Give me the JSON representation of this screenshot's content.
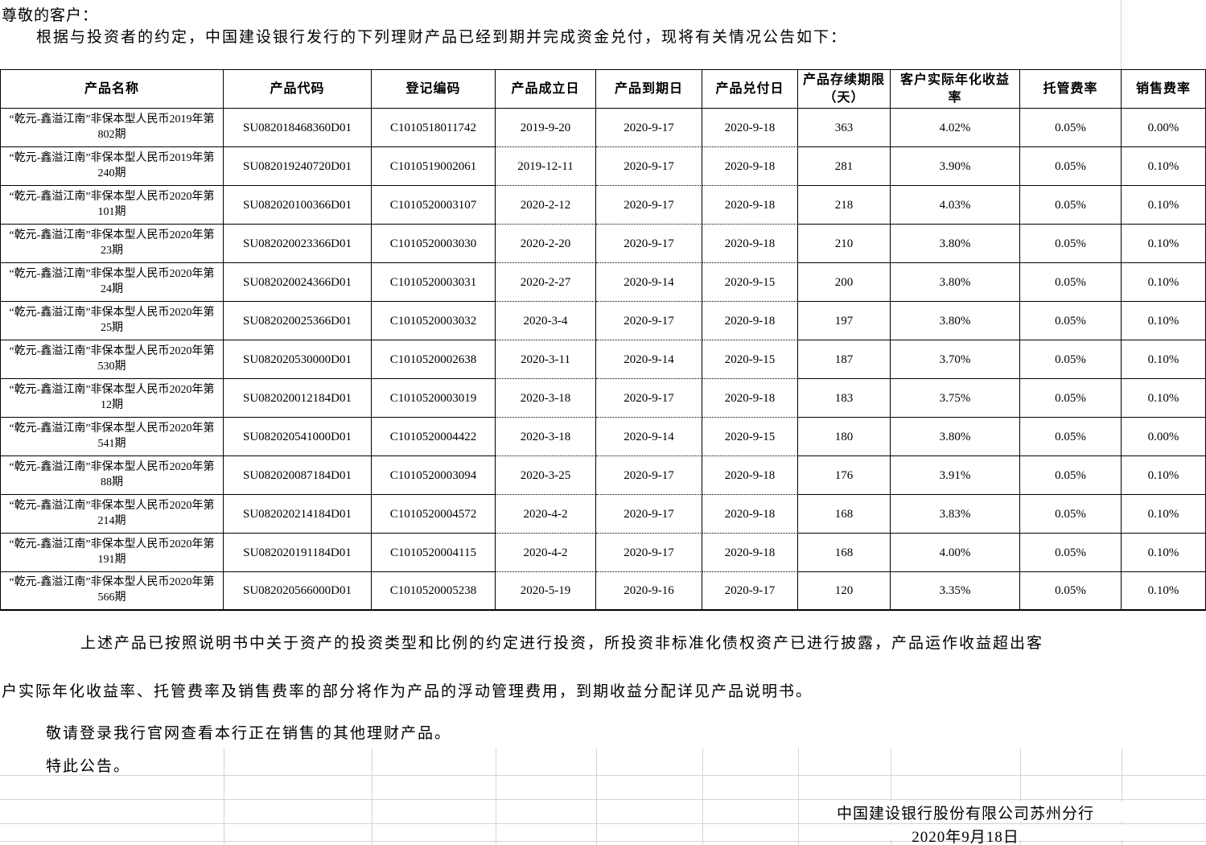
{
  "intro": {
    "salutation": "尊敬的客户：",
    "body": "根据与投资者的约定，中国建设银行发行的下列理财产品已经到期并完成资金兑付，现将有关情况公告如下："
  },
  "table": {
    "headers": [
      "产品名称",
      "产品代码",
      "登记编码",
      "产品成立日",
      "产品到期日",
      "产品兑付日",
      "产品存续期限（天）",
      "客户实际年化收益率",
      "托管费率",
      "销售费率"
    ],
    "rows": [
      [
        "“乾元-鑫溢江南”非保本型人民币2019年第802期",
        "SU082018468360D01",
        "C1010518011742",
        "2019-9-20",
        "2020-9-17",
        "2020-9-18",
        "363",
        "4.02%",
        "0.05%",
        "0.00%"
      ],
      [
        "“乾元-鑫溢江南”非保本型人民币2019年第240期",
        "SU082019240720D01",
        "C1010519002061",
        "2019-12-11",
        "2020-9-17",
        "2020-9-18",
        "281",
        "3.90%",
        "0.05%",
        "0.10%"
      ],
      [
        "“乾元-鑫溢江南”非保本型人民币2020年第101期",
        "SU082020100366D01",
        "C1010520003107",
        "2020-2-12",
        "2020-9-17",
        "2020-9-18",
        "218",
        "4.03%",
        "0.05%",
        "0.10%"
      ],
      [
        "“乾元-鑫溢江南”非保本型人民币2020年第23期",
        "SU082020023366D01",
        "C1010520003030",
        "2020-2-20",
        "2020-9-17",
        "2020-9-18",
        "210",
        "3.80%",
        "0.05%",
        "0.10%"
      ],
      [
        "“乾元-鑫溢江南”非保本型人民币2020年第24期",
        "SU082020024366D01",
        "C1010520003031",
        "2020-2-27",
        "2020-9-14",
        "2020-9-15",
        "200",
        "3.80%",
        "0.05%",
        "0.10%"
      ],
      [
        "“乾元-鑫溢江南”非保本型人民币2020年第25期",
        "SU082020025366D01",
        "C1010520003032",
        "2020-3-4",
        "2020-9-17",
        "2020-9-18",
        "197",
        "3.80%",
        "0.05%",
        "0.10%"
      ],
      [
        "“乾元-鑫溢江南”非保本型人民币2020年第530期",
        "SU082020530000D01",
        "C1010520002638",
        "2020-3-11",
        "2020-9-14",
        "2020-9-15",
        "187",
        "3.70%",
        "0.05%",
        "0.10%"
      ],
      [
        "“乾元-鑫溢江南”非保本型人民币2020年第12期",
        "SU082020012184D01",
        "C1010520003019",
        "2020-3-18",
        "2020-9-17",
        "2020-9-18",
        "183",
        "3.75%",
        "0.05%",
        "0.10%"
      ],
      [
        "“乾元-鑫溢江南”非保本型人民币2020年第541期",
        "SU082020541000D01",
        "C1010520004422",
        "2020-3-18",
        "2020-9-14",
        "2020-9-15",
        "180",
        "3.80%",
        "0.05%",
        "0.00%"
      ],
      [
        "“乾元-鑫溢江南”非保本型人民币2020年第88期",
        "SU082020087184D01",
        "C1010520003094",
        "2020-3-25",
        "2020-9-17",
        "2020-9-18",
        "176",
        "3.91%",
        "0.05%",
        "0.10%"
      ],
      [
        "“乾元-鑫溢江南”非保本型人民币2020年第214期",
        "SU082020214184D01",
        "C1010520004572",
        "2020-4-2",
        "2020-9-17",
        "2020-9-18",
        "168",
        "3.83%",
        "0.05%",
        "0.10%"
      ],
      [
        "“乾元-鑫溢江南”非保本型人民币2020年第191期",
        "SU082020191184D01",
        "C1010520004115",
        "2020-4-2",
        "2020-9-17",
        "2020-9-18",
        "168",
        "4.00%",
        "0.05%",
        "0.10%"
      ],
      [
        "“乾元-鑫溢江南”非保本型人民币2020年第566期",
        "SU082020566000D01",
        "C1010520005238",
        "2020-5-19",
        "2020-9-16",
        "2020-9-17",
        "120",
        "3.35%",
        "0.05%",
        "0.10%"
      ]
    ]
  },
  "notes": {
    "para1": "上述产品已按照说明书中关于资产的投资类型和比例的约定进行投资，所投资非标准化债权资产已进行披露，产品运作收益超出客",
    "para2": "户实际年化收益率、托管费率及销售费率的部分将作为产品的浮动管理费用，到期收益分配详见产品说明书。",
    "para3": "敬请登录我行官网查看本行正在销售的其他理财产品。",
    "para4": "特此公告。"
  },
  "signature": {
    "org": "中国建设银行股份有限公司苏州分行",
    "date": "2020年9月18日"
  },
  "colors": {
    "background": "#ffffff",
    "text": "#000000",
    "table_border": "#000000",
    "gridline": "#d4d4d4"
  }
}
